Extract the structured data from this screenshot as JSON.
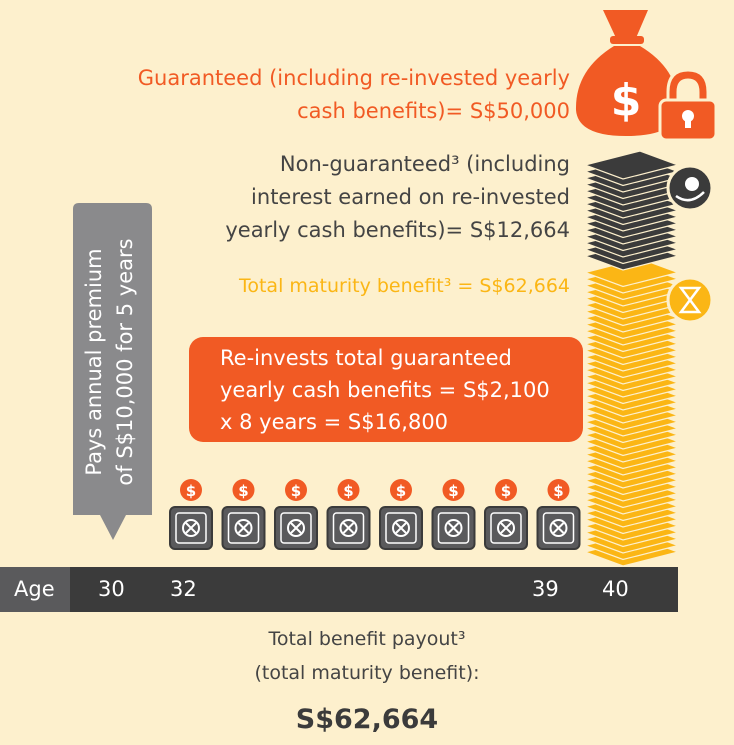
{
  "guaranteed": {
    "lines": [
      "Guaranteed (including re-invested yearly",
      "cash benefits)= S$50,000"
    ]
  },
  "non_guaranteed": {
    "lines": [
      "Non-guaranteed³ (including",
      "interest earned on re-invested",
      "yearly cash benefits)= S$12,664"
    ]
  },
  "total_maturity": "Total maturity benefit³ = S$62,664",
  "reinvest_box": {
    "lines": [
      "Re-invests total guaranteed",
      "yearly cash benefits = S$2,100",
      "x 8 years = S$16,800"
    ]
  },
  "premium_tag": {
    "lines": [
      "Pays annual premium",
      "of S$10,000 for 5 years"
    ]
  },
  "icons": {
    "dollar": "$"
  },
  "timeline": {
    "label": "Age",
    "ages": [
      "30",
      "32",
      "39",
      "40"
    ]
  },
  "footer": {
    "lines": [
      "Total benefit payout³",
      "(total maturity benefit):"
    ],
    "amount": "S$62,664"
  }
}
